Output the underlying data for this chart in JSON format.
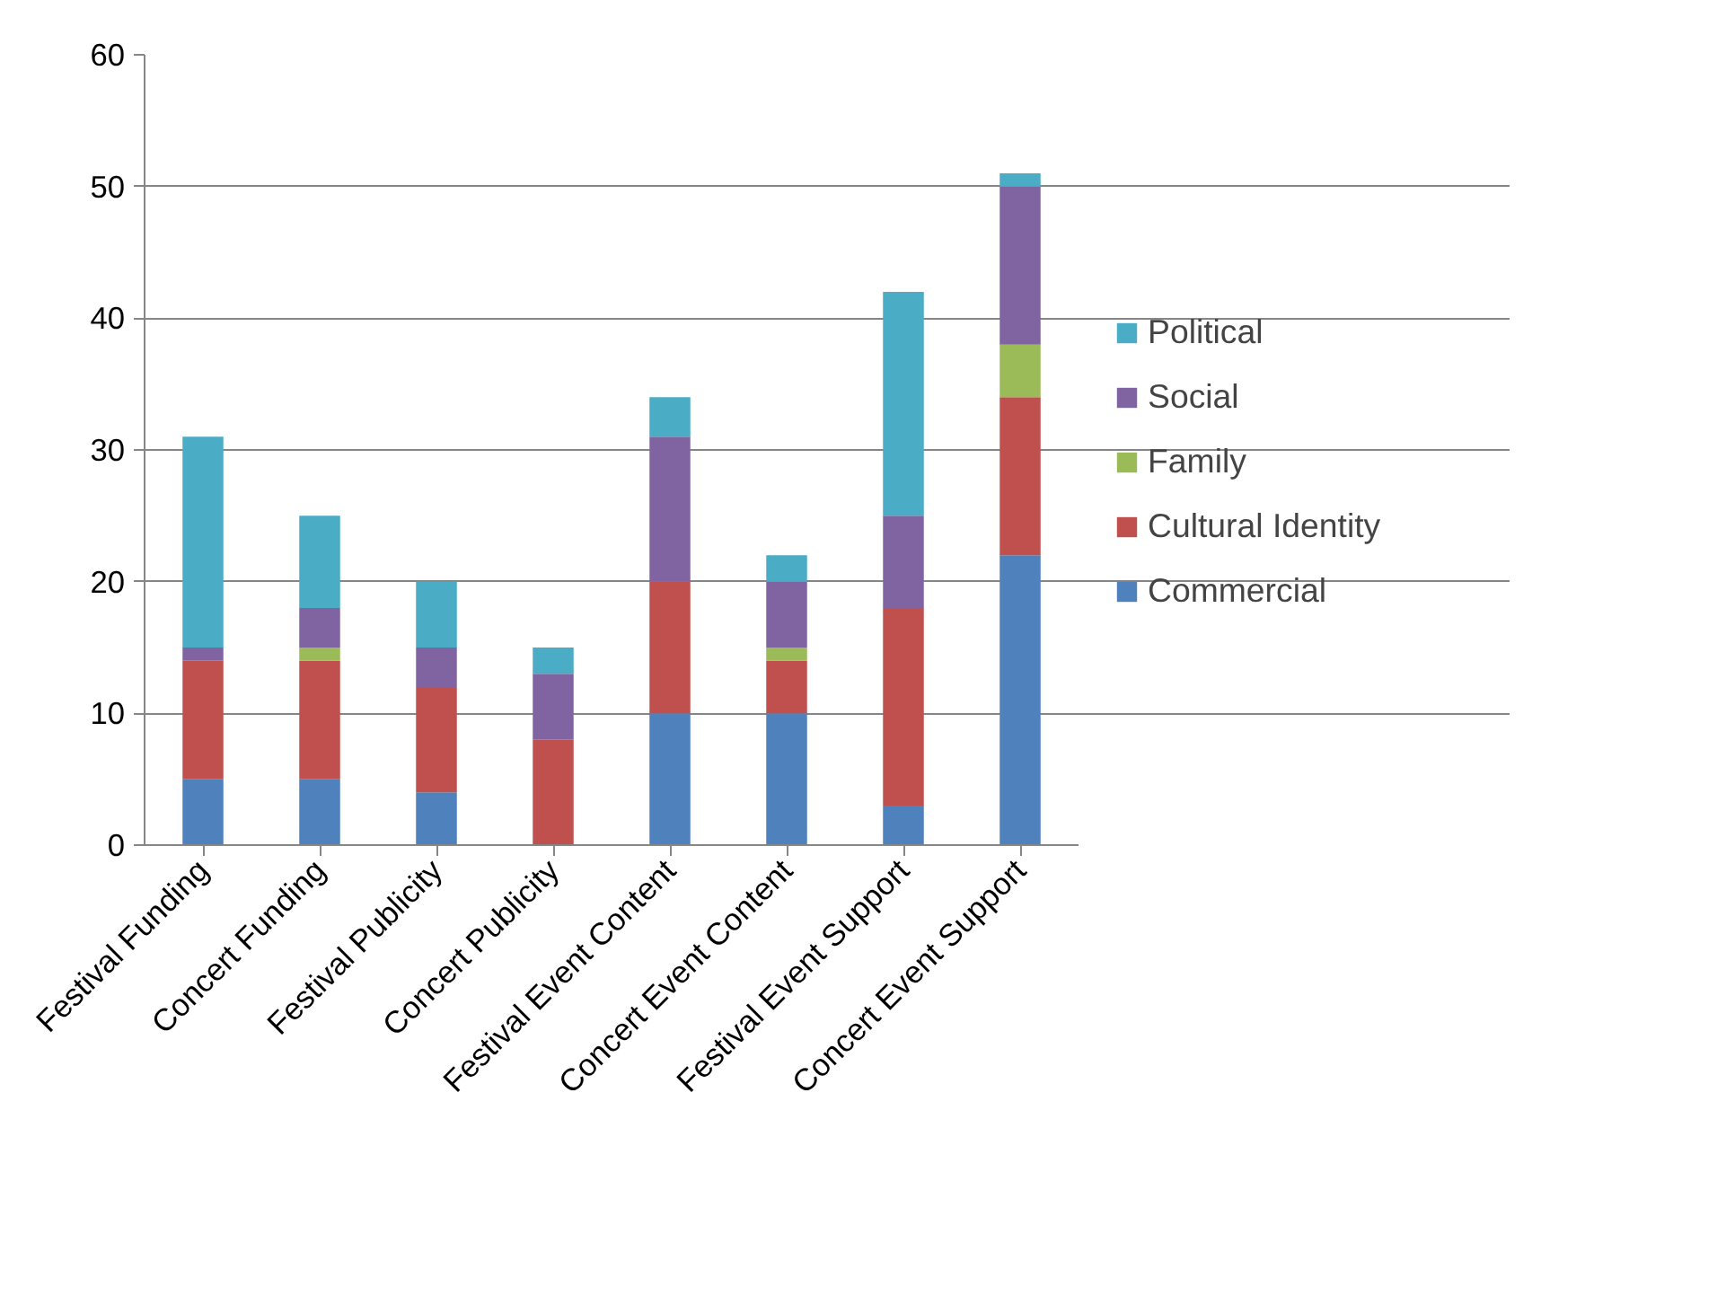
{
  "chart_data": {
    "type": "bar",
    "stacked": true,
    "categories": [
      "Festival Funding",
      "Concert Funding",
      "Festival Publicity",
      "Concert Publicity",
      "Festival Event Content",
      "Concert Event Content",
      "Festival Event Support",
      "Concert Event Support"
    ],
    "series": [
      {
        "name": "Commercial",
        "color": "#4f81bd",
        "values": [
          5,
          5,
          4,
          0,
          10,
          10,
          3,
          22
        ]
      },
      {
        "name": "Cultural Identity",
        "color": "#c0504d",
        "values": [
          9,
          9,
          8,
          8,
          10,
          4,
          15,
          12
        ]
      },
      {
        "name": "Family",
        "color": "#9bbb59",
        "values": [
          0,
          1,
          0,
          0,
          0,
          1,
          0,
          4
        ]
      },
      {
        "name": "Social",
        "color": "#8064a2",
        "values": [
          1,
          3,
          3,
          5,
          11,
          5,
          7,
          12
        ]
      },
      {
        "name": "Political",
        "color": "#4bacc6",
        "values": [
          16,
          7,
          5,
          2,
          3,
          2,
          17,
          1
        ]
      }
    ],
    "ylim": [
      0,
      60
    ],
    "yticks": [
      0,
      10,
      20,
      30,
      40,
      50,
      60
    ],
    "grid": "y",
    "legend": "right"
  }
}
